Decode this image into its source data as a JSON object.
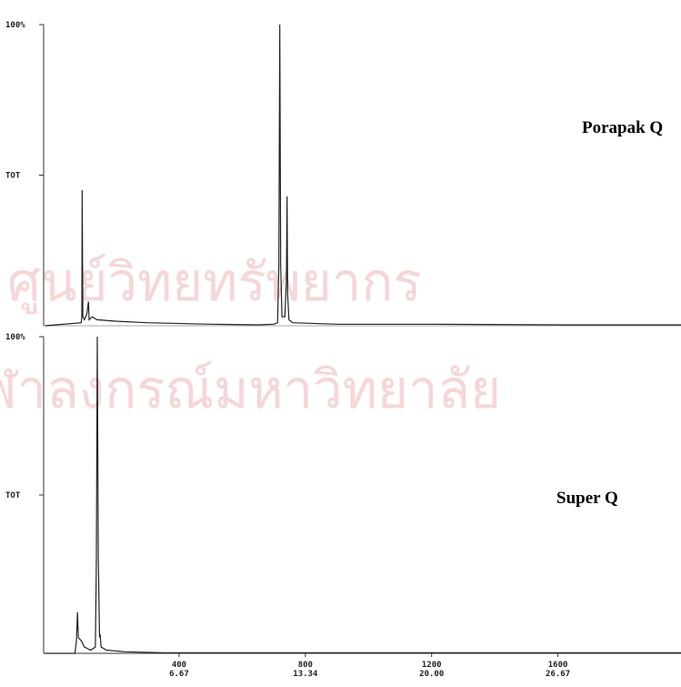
{
  "watermark": [
    "ศูนย์วิทยทรัพยากร",
    "จุฬาลงกรณ์มหาวิทยาลัย"
  ],
  "chart_data": [
    {
      "type": "line",
      "annotation": "Porapak Q",
      "xlim": [
        -29,
        1990
      ],
      "ylim": [
        0,
        100
      ],
      "yticks": [
        {
          "value": 100,
          "label": "100%"
        },
        {
          "value": 50,
          "label": "TOT"
        }
      ],
      "color": "#222222",
      "x": [
        -25,
        90,
        92,
        93,
        95,
        100,
        108,
        113,
        115,
        125,
        140,
        200,
        300,
        500,
        650,
        700,
        712,
        716,
        719,
        722,
        726,
        735,
        740,
        742,
        744,
        748,
        760,
        900,
        1200,
        1600,
        1990
      ],
      "values": [
        0,
        1,
        3,
        45,
        3,
        2,
        4,
        8,
        2,
        3,
        2,
        1.5,
        1,
        0.5,
        0.3,
        0.5,
        1,
        20,
        100,
        20,
        3,
        3,
        15,
        43,
        10,
        2,
        1,
        0.5,
        0.5,
        0.3,
        0.3
      ]
    },
    {
      "type": "line",
      "annotation": "Super Q",
      "xlim": [
        -29,
        1990
      ],
      "ylim": [
        0,
        100
      ],
      "yticks": [
        {
          "value": 100,
          "label": "100%"
        },
        {
          "value": 50,
          "label": "TOT"
        }
      ],
      "xticks": [
        400,
        800,
        1200,
        1600
      ],
      "xticks_time": [
        {
          "value": 400,
          "label": "6.67"
        },
        {
          "value": 800,
          "label": "13.34"
        },
        {
          "value": 1200,
          "label": "20.00"
        },
        {
          "value": 1600,
          "label": "26.67"
        }
      ],
      "color": "#222222",
      "x": [
        -25,
        70,
        75,
        78,
        81,
        90,
        100,
        120,
        135,
        138,
        141,
        144,
        148,
        150,
        153,
        170,
        230,
        350,
        1990
      ],
      "values": [
        0,
        0,
        4,
        13,
        5,
        4,
        2,
        1,
        2,
        30,
        100,
        30,
        5,
        6,
        2,
        1,
        0.5,
        0.2,
        0.2
      ]
    }
  ]
}
